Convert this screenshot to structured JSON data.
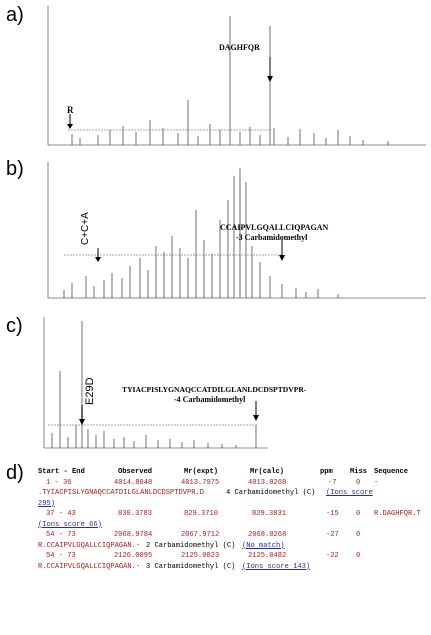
{
  "panels": {
    "a": {
      "label": "a)",
      "peptide": "DAGHFQR",
      "marker": "R"
    },
    "b": {
      "label": "b)",
      "peptide_line1": "CCAIPVLGQALLCIQPAGAN",
      "peptide_line2": "-3 Carbamidomethyl",
      "marker": "C+C+A"
    },
    "c": {
      "label": "c)",
      "peptide_line1": "TYIACPISLYGNAQCCATDILGLANLDCDSPTDVPR-",
      "peptide_line2": "-4 Carbamidomethyl",
      "marker": "E29D"
    },
    "d": {
      "label": "d)"
    }
  },
  "table": {
    "headers": [
      "Start - End",
      "Observed",
      "Mr(expt)",
      "Mr(calc)",
      "ppm",
      "Miss",
      "Sequence"
    ],
    "rows": [
      {
        "range": "1 - 36",
        "observed": "4014.8048",
        "expt": "4013.7975",
        "calc": "4013.8268",
        "ppm": "-7",
        "miss": "0",
        "seq": "-"
      },
      {
        "cont": ".TYIACPISLYGNAQCCATDILGLANLDCDSPTDVPR.D",
        "mod": "4 Carbamidomethyl (C)",
        "link": "(Ions score"
      },
      {
        "cont_link": "295)"
      },
      {
        "range": "37 - 43",
        "observed": "830.3783",
        "expt": "829.3710",
        "calc": "829.3831",
        "ppm": "-15",
        "miss": "0",
        "seq": "R.DAGHFQR.T"
      },
      {
        "cont_link": "(Ions score 66)"
      },
      {
        "range": "54 - 73",
        "observed": "2068.9784",
        "expt": "2067.9712",
        "calc": "2068.0268",
        "ppm": "-27",
        "miss": "0"
      },
      {
        "cont": "R.CCAIPVLGQALLCIQPAGAN.-",
        "mod": "2 Carbamidomethyl (C)",
        "link": "(No match)"
      },
      {
        "range": "54 - 73",
        "observed": "2126.0095",
        "expt": "2125.0023",
        "calc": "2125.0482",
        "ppm": "-22",
        "miss": "0"
      },
      {
        "cont": "R.CCAIPVLGQALLCIQPAGAN.-",
        "mod": "3 Carbamidomethyl (C)",
        "link": "(Ions score 143)"
      }
    ]
  }
}
